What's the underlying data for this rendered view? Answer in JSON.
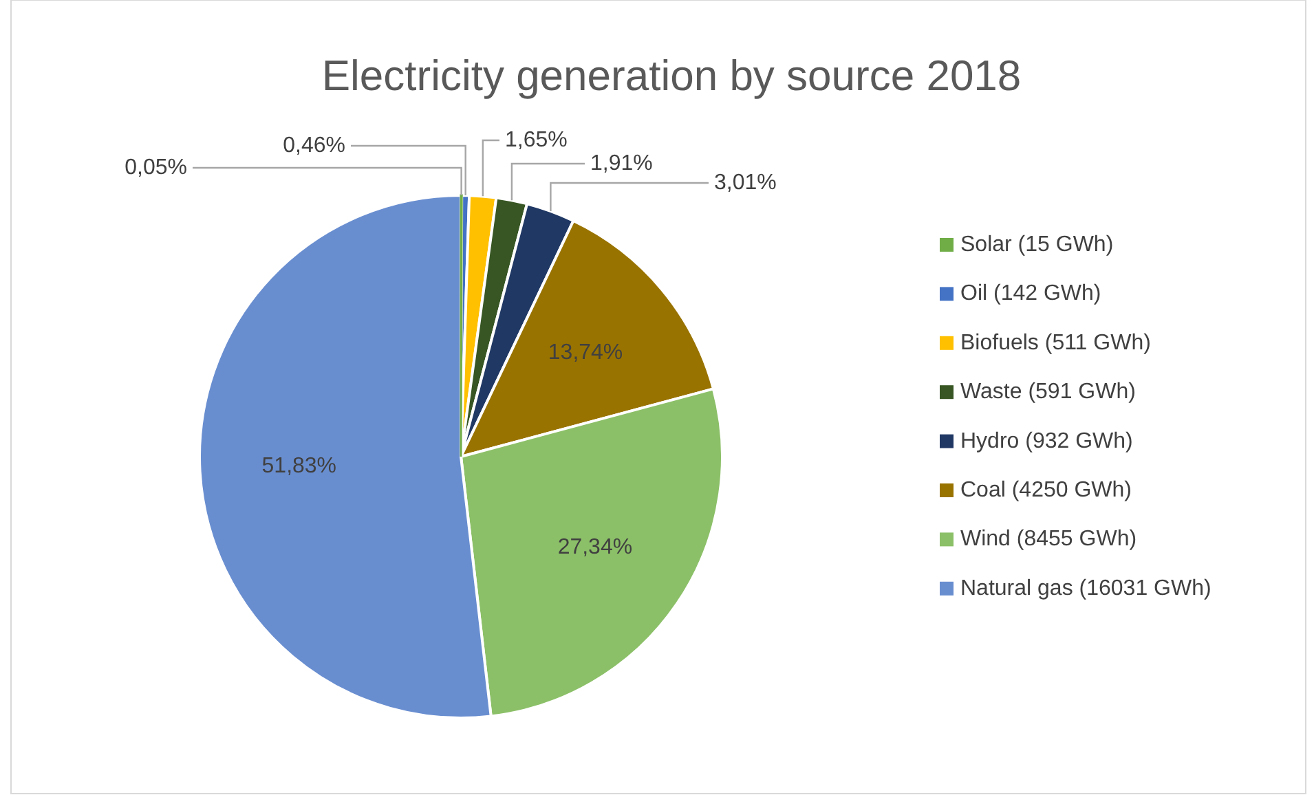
{
  "chart_data": {
    "type": "pie",
    "title": "Electricity generation by source 2018",
    "categories": [
      "Solar (15 GWh)",
      "Oil (142 GWh)",
      "Biofuels (511 GWh)",
      "Waste (591 GWh)",
      "Hydro (932 GWh)",
      "Coal (4250 GWh)",
      "Wind (8455 GWh)",
      "Natural gas (16031 GWh)"
    ],
    "values": [
      0.05,
      0.46,
      1.65,
      1.91,
      3.01,
      13.74,
      27.34,
      51.83
    ],
    "value_labels": [
      "0,05%",
      "0,46%",
      "1,65%",
      "1,91%",
      "3,01%",
      "13,74%",
      "27,34%",
      "51,83%"
    ],
    "colors": [
      "#70ad47",
      "#4472c4",
      "#ffc000",
      "#375623",
      "#203864",
      "#997300",
      "#8cc068",
      "#698ed0"
    ],
    "legend": "right"
  }
}
